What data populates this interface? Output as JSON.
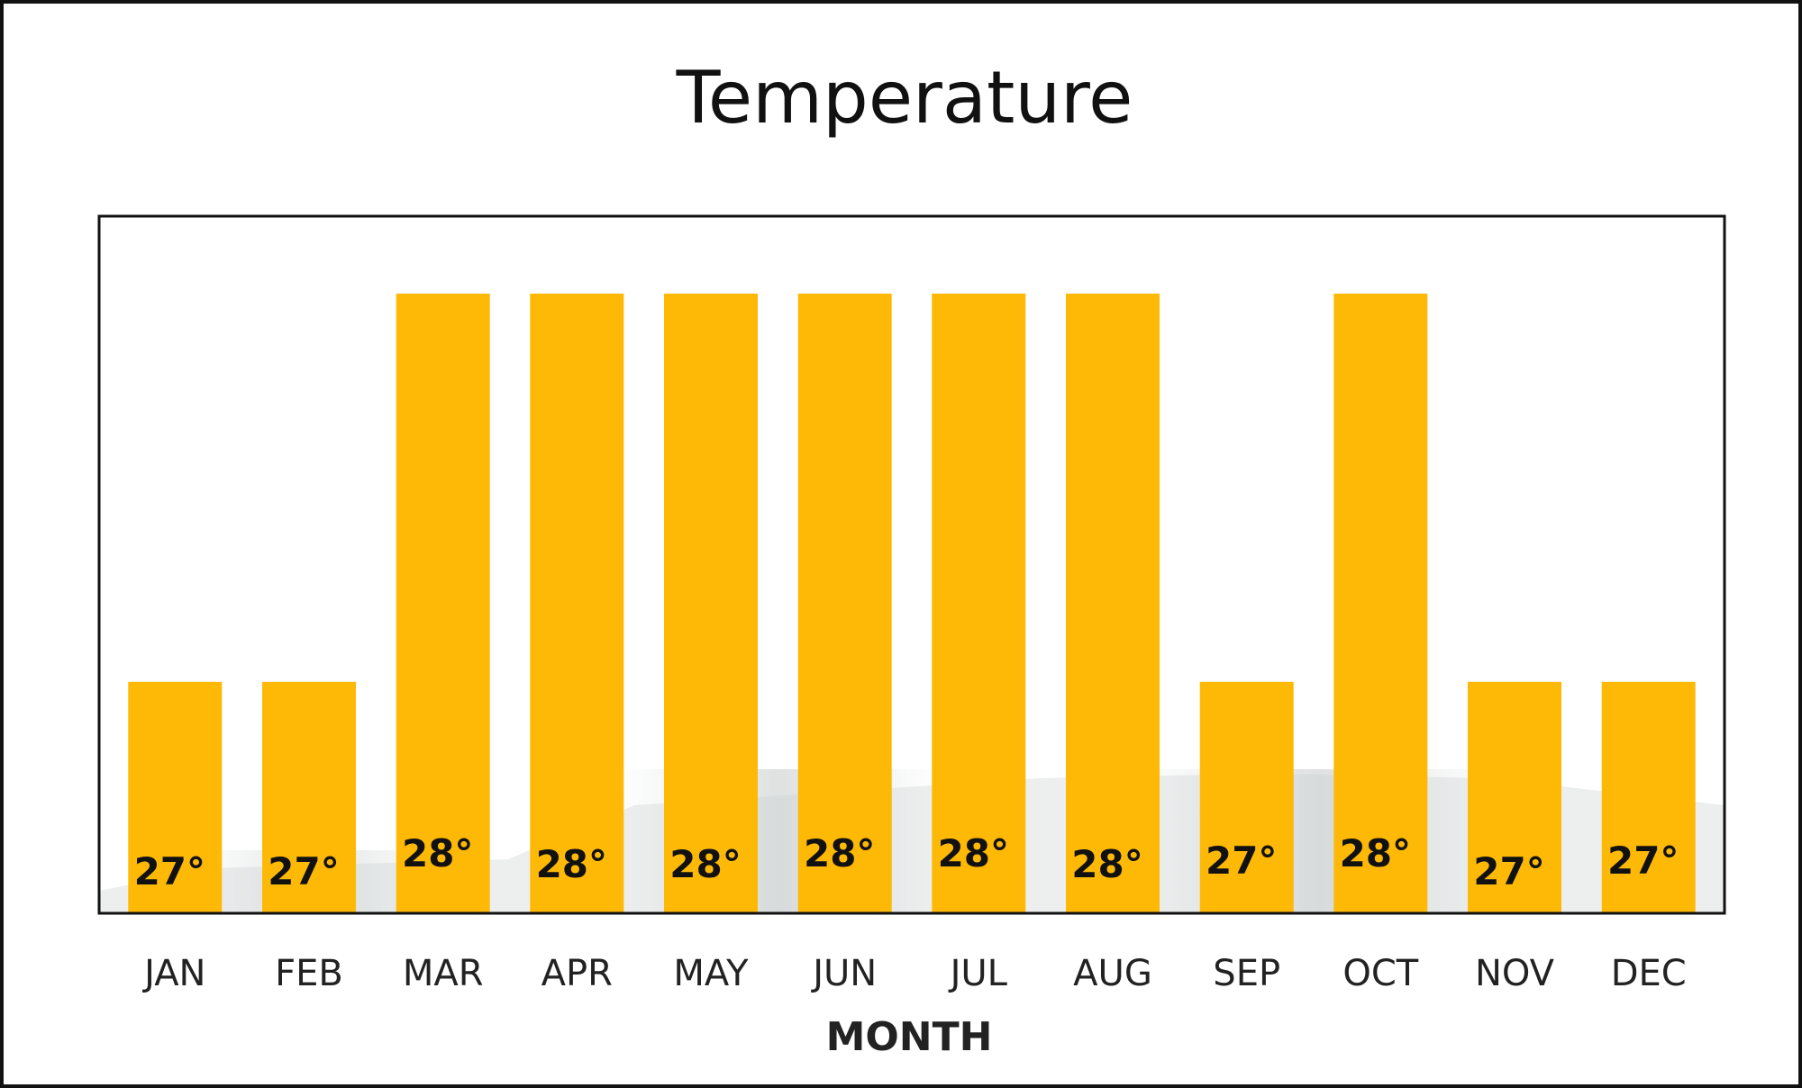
{
  "chart_data": {
    "type": "bar",
    "title": "Temperature",
    "xlabel": "MONTH",
    "ylabel": "",
    "categories": [
      "JAN",
      "FEB",
      "MAR",
      "APR",
      "MAY",
      "JUN",
      "JUL",
      "AUG",
      "SEP",
      "OCT",
      "NOV",
      "DEC"
    ],
    "values": [
      27,
      27,
      28,
      28,
      28,
      28,
      28,
      28,
      27,
      28,
      27,
      27
    ],
    "data_labels": [
      "27°",
      "27°",
      "28°",
      "28°",
      "28°",
      "28°",
      "28°",
      "28°",
      "27°",
      "28°",
      "27°",
      "27°"
    ],
    "unit_symbol": "°",
    "bar_color": "#FDB906",
    "grid": false,
    "legend": "none"
  }
}
